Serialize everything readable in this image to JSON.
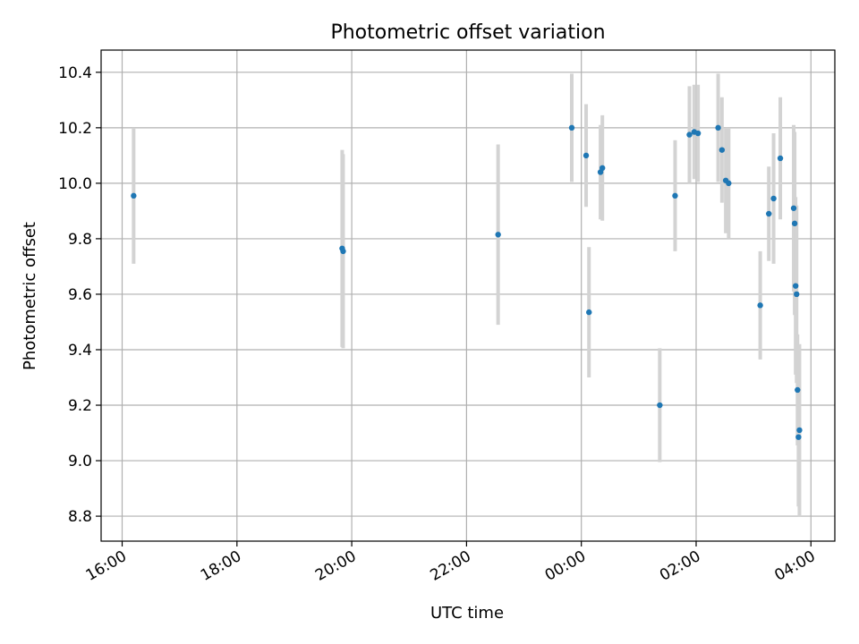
{
  "chart_data": {
    "type": "scatter",
    "title": "Photometric offset variation",
    "xlabel": "UTC time",
    "ylabel": "Photometric offset",
    "x_ticks": [
      {
        "hour": 0,
        "label": "16:00"
      },
      {
        "hour": 2,
        "label": "18:00"
      },
      {
        "hour": 4,
        "label": "20:00"
      },
      {
        "hour": 6,
        "label": "22:00"
      },
      {
        "hour": 8,
        "label": "00:00"
      },
      {
        "hour": 10,
        "label": "02:00"
      },
      {
        "hour": 12,
        "label": "04:00"
      }
    ],
    "y_ticks": [
      8.8,
      9.0,
      9.2,
      9.4,
      9.6,
      9.8,
      10.0,
      10.2,
      10.4
    ],
    "xlim": [
      "15:38",
      "04:25"
    ],
    "ylim": [
      8.71,
      10.48
    ],
    "grid": true,
    "point_color": "#1f77b4",
    "errorbar_color": "#d3d3d3",
    "series": [
      {
        "points": [
          {
            "t": "16:12",
            "y": 9.955,
            "err": 0.245
          },
          {
            "t": "19:50",
            "y": 9.765,
            "err": 0.355
          },
          {
            "t": "19:51",
            "y": 9.755,
            "err": 0.35
          },
          {
            "t": "22:33",
            "y": 9.815,
            "err": 0.325
          },
          {
            "t": "23:50",
            "y": 10.2,
            "err": 0.195
          },
          {
            "t": "00:05",
            "y": 10.1,
            "err": 0.185
          },
          {
            "t": "00:08",
            "y": 9.535,
            "err": 0.235
          },
          {
            "t": "00:20",
            "y": 10.04,
            "err": 0.17
          },
          {
            "t": "00:22",
            "y": 10.055,
            "err": 0.19
          },
          {
            "t": "01:22",
            "y": 9.2,
            "err": 0.205
          },
          {
            "t": "01:38",
            "y": 9.955,
            "err": 0.2
          },
          {
            "t": "01:53",
            "y": 10.175,
            "err": 0.175
          },
          {
            "t": "01:58",
            "y": 10.185,
            "err": 0.17
          },
          {
            "t": "02:02",
            "y": 10.18,
            "err": 0.175
          },
          {
            "t": "02:23",
            "y": 10.2,
            "err": 0.195
          },
          {
            "t": "02:27",
            "y": 10.12,
            "err": 0.19
          },
          {
            "t": "02:31",
            "y": 10.01,
            "err": 0.19
          },
          {
            "t": "02:34",
            "y": 10.0,
            "err": 0.2
          },
          {
            "t": "03:07",
            "y": 9.56,
            "err": 0.195
          },
          {
            "t": "03:16",
            "y": 9.89,
            "err": 0.17
          },
          {
            "t": "03:21",
            "y": 9.945,
            "err": 0.235
          },
          {
            "t": "03:28",
            "y": 10.09,
            "err": 0.22
          },
          {
            "t": "03:42",
            "y": 9.91,
            "err": 0.3
          },
          {
            "t": "03:43",
            "y": 9.855,
            "err": 0.33
          },
          {
            "t": "03:44",
            "y": 9.63,
            "err": 0.32
          },
          {
            "t": "03:45",
            "y": 9.6,
            "err": 0.32
          },
          {
            "t": "03:46",
            "y": 9.255,
            "err": 0.2
          },
          {
            "t": "03:47",
            "y": 9.085,
            "err": 0.25
          },
          {
            "t": "03:48",
            "y": 9.11,
            "err": 0.31
          }
        ]
      }
    ]
  }
}
